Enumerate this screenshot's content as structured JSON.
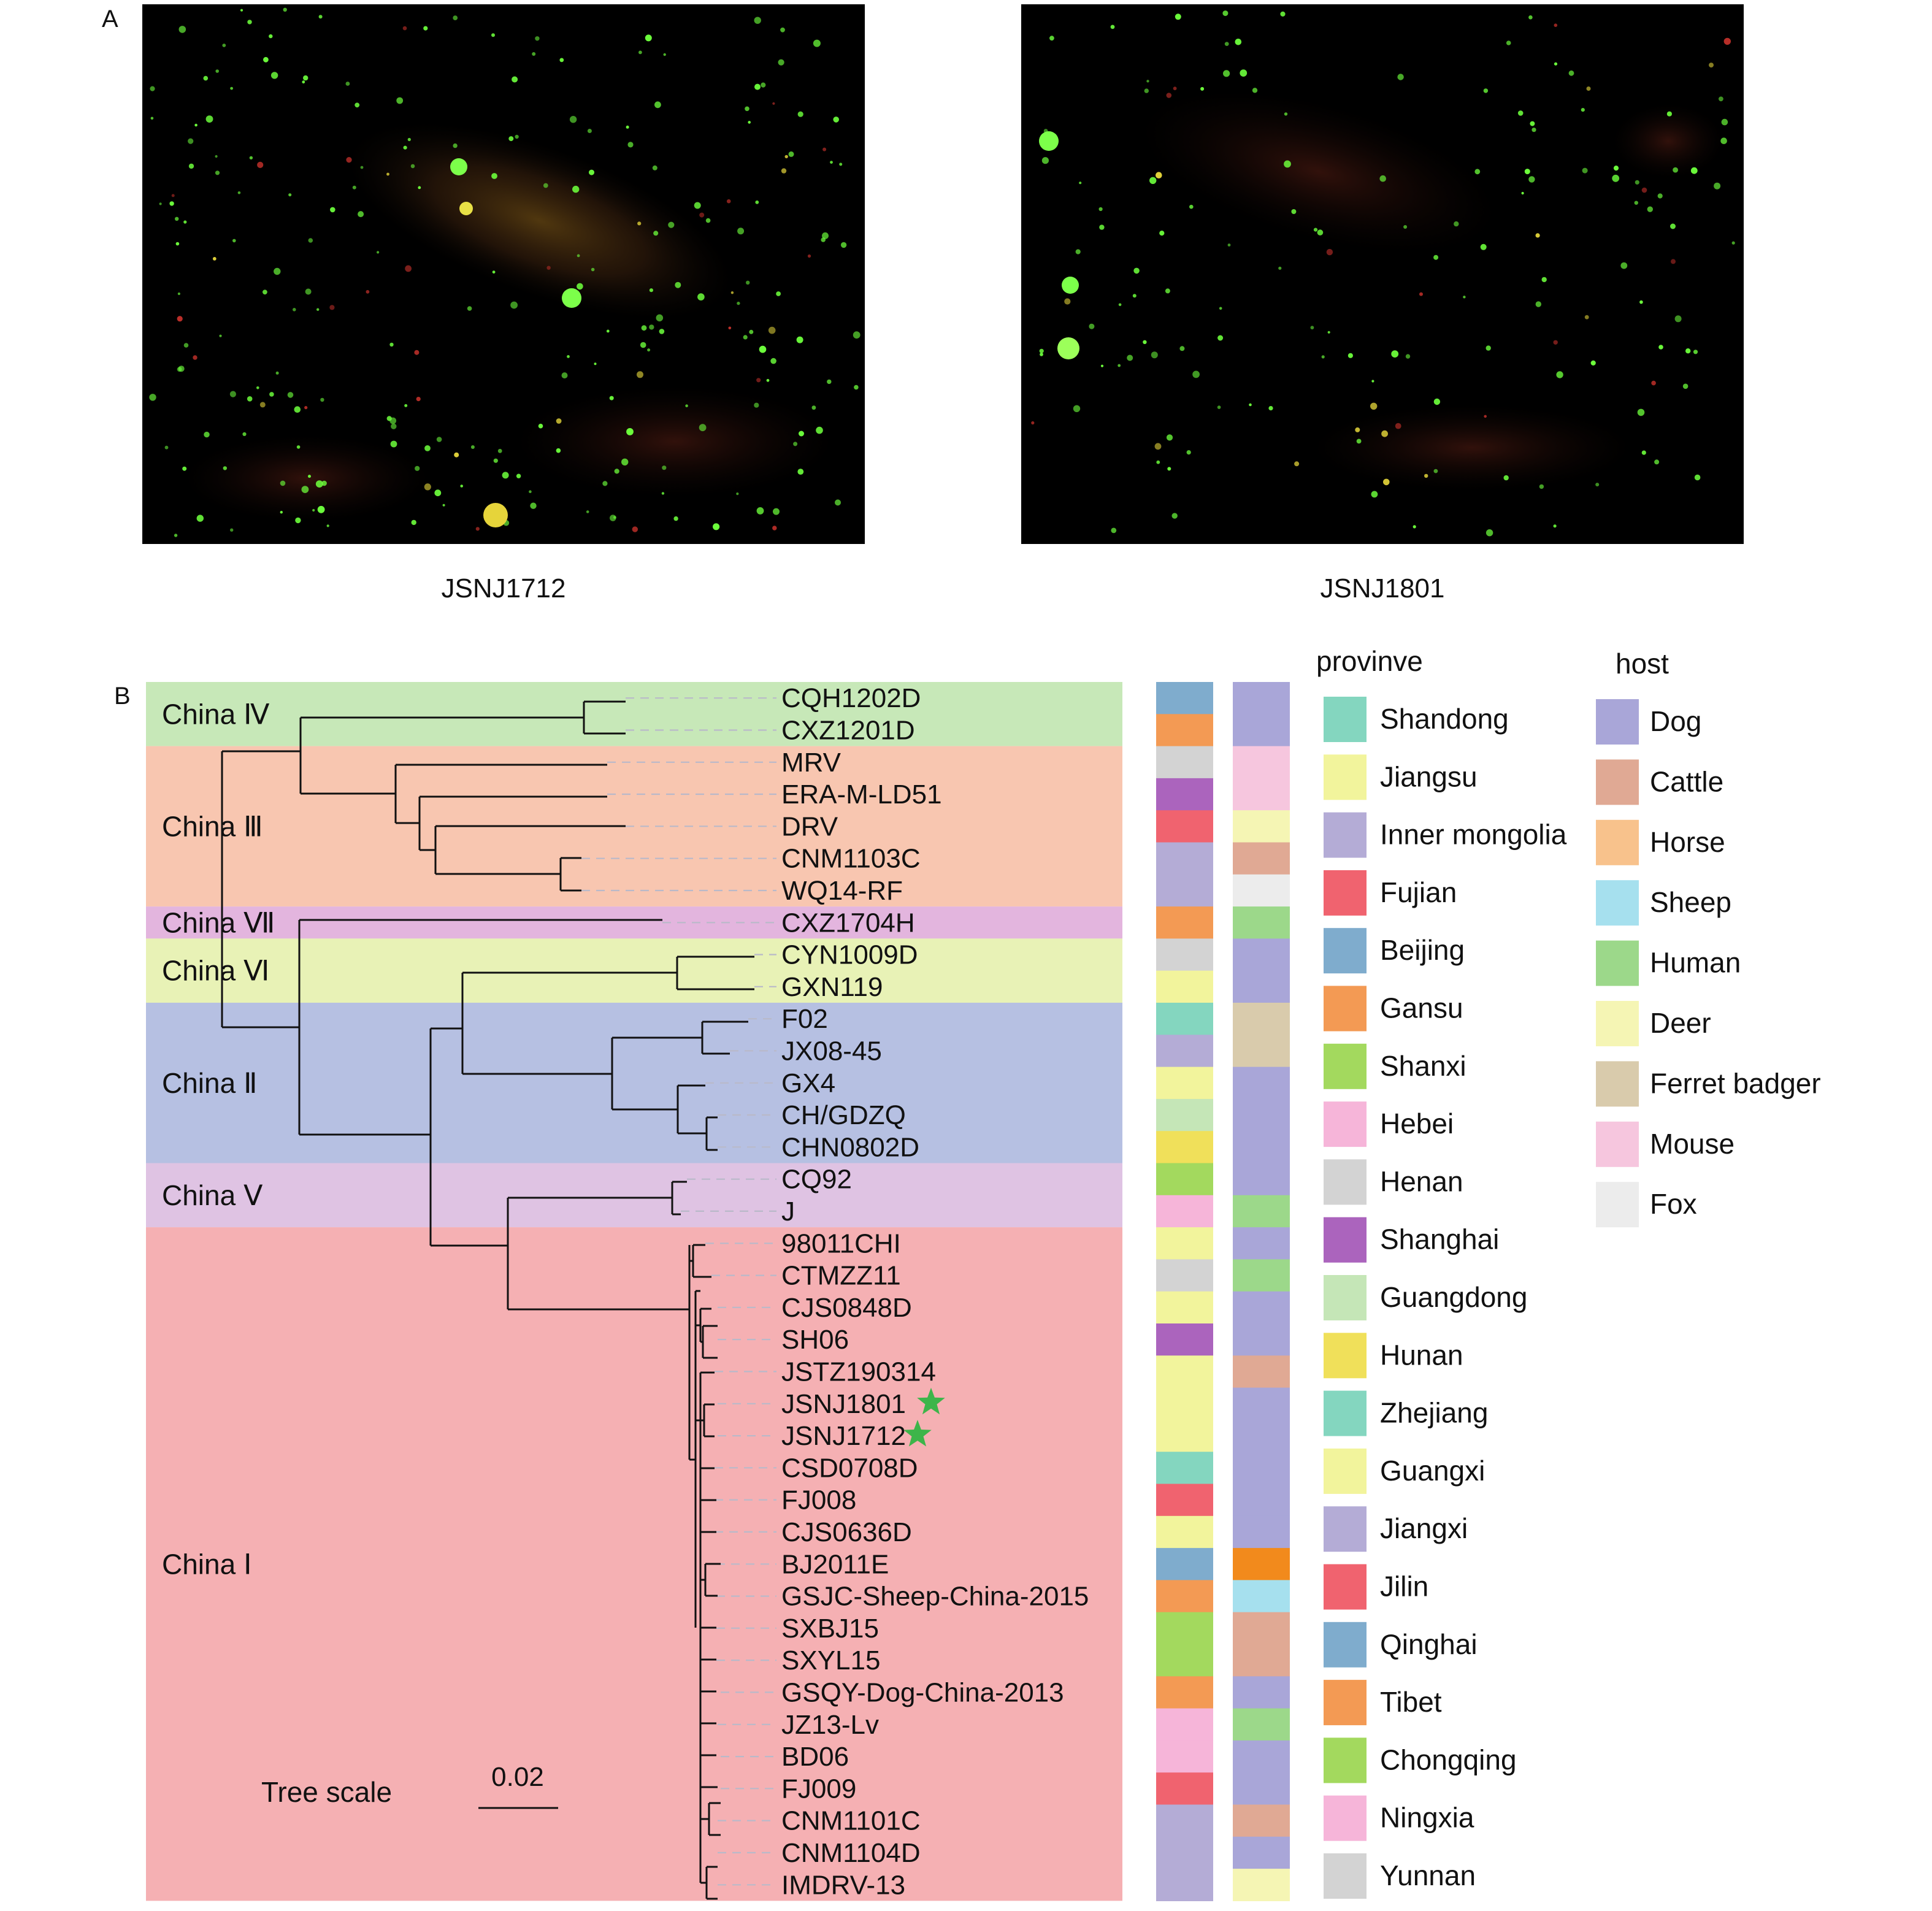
{
  "panel_a": {
    "label": "A",
    "images": [
      {
        "caption": "JSNJ1712"
      },
      {
        "caption": "JSNJ1801"
      }
    ]
  },
  "panel_b": {
    "label": "B",
    "clades": [
      {
        "name": "China Ⅳ",
        "color": "#c7e8b8",
        "rows": [
          0,
          1
        ]
      },
      {
        "name": "China Ⅲ",
        "color": "#f8c6b0",
        "rows": [
          2,
          6
        ]
      },
      {
        "name": "China Ⅶ",
        "color": "#e3b5de",
        "rows": [
          7,
          7
        ]
      },
      {
        "name": "China Ⅵ",
        "color": "#e8f2b6",
        "rows": [
          8,
          9
        ]
      },
      {
        "name": "China Ⅱ",
        "color": "#b6c0e2",
        "rows": [
          10,
          14
        ]
      },
      {
        "name": "China Ⅴ",
        "color": "#dfc3e3",
        "rows": [
          15,
          16
        ]
      },
      {
        "name": "China Ⅰ",
        "color": "#f5b0b3",
        "rows": [
          17,
          37
        ]
      }
    ],
    "leaves": [
      {
        "name": "CQH1202D",
        "province": "Beijing",
        "host": "Dog"
      },
      {
        "name": "CXZ1201D",
        "province": "Tibet",
        "host": "Dog"
      },
      {
        "name": "MRV",
        "province": "Henan",
        "host": "Mouse"
      },
      {
        "name": "ERA-M-LD51",
        "province": "Shanghai",
        "host": "Mouse"
      },
      {
        "name": "DRV",
        "province": "Jilin",
        "host": "Deer"
      },
      {
        "name": "CNM1103C",
        "province": "Inner mongolia",
        "host": "Cattle"
      },
      {
        "name": "WQ14-RF",
        "province": "Inner mongolia",
        "host": "Fox"
      },
      {
        "name": "CXZ1704H",
        "province": "Tibet",
        "host": "Human"
      },
      {
        "name": "CYN1009D",
        "province": "Henan",
        "host": "Dog"
      },
      {
        "name": "GXN119",
        "province": "Guangxi",
        "host": "Dog"
      },
      {
        "name": "F02",
        "province": "Zhejiang",
        "host": "Ferret badger"
      },
      {
        "name": "JX08-45",
        "province": "Jiangxi",
        "host": "Ferret badger"
      },
      {
        "name": "GX4",
        "province": "Guangxi",
        "host": "Dog"
      },
      {
        "name": "CH/GDZQ",
        "province": "Guangdong",
        "host": "Dog"
      },
      {
        "name": "CHN0802D",
        "province": "Hunan",
        "host": "Dog"
      },
      {
        "name": "CQ92",
        "province": "Chongqing",
        "host": "Dog"
      },
      {
        "name": "J",
        "province": "Hebei",
        "host": "Human"
      },
      {
        "name": "98011CHI",
        "province": "Jiangsu",
        "host": "Dog"
      },
      {
        "name": "CTMZZ11",
        "province": "Henan",
        "host": "Human"
      },
      {
        "name": "CJS0848D",
        "province": "Jiangsu",
        "host": "Dog"
      },
      {
        "name": "SH06",
        "province": "Shanghai",
        "host": "Dog"
      },
      {
        "name": "JSTZ190314",
        "province": "Jiangsu",
        "host": "Cattle"
      },
      {
        "name": "JSNJ1801",
        "province": "Jiangsu",
        "host": "Dog",
        "star": true
      },
      {
        "name": "JSNJ1712",
        "province": "Jiangsu",
        "host": "Dog",
        "star": true
      },
      {
        "name": "CSD0708D",
        "province": "Shandong",
        "host": "Dog"
      },
      {
        "name": "FJ008",
        "province": "Fujian",
        "host": "Dog"
      },
      {
        "name": "CJS0636D",
        "province": "Jiangsu",
        "host": "Dog"
      },
      {
        "name": "BJ2011E",
        "province": "Beijing",
        "host": "Horse"
      },
      {
        "name": "GSJC-Sheep-China-2015",
        "province": "Gansu",
        "host": "Sheep"
      },
      {
        "name": "SXBJ15",
        "province": "Shanxi",
        "host": "Cattle"
      },
      {
        "name": "SXYL15",
        "province": "Shanxi",
        "host": "Cattle"
      },
      {
        "name": "GSQY-Dog-China-2013",
        "province": "Gansu",
        "host": "Dog"
      },
      {
        "name": "JZ13-Lv",
        "province": "Ningxia",
        "host": "Human"
      },
      {
        "name": "BD06",
        "province": "Ningxia",
        "host": "Dog"
      },
      {
        "name": "FJ009",
        "province": "Fujian",
        "host": "Dog"
      },
      {
        "name": "CNM1101C",
        "province": "Inner mongolia",
        "host": "Cattle"
      },
      {
        "name": "CNM1104D",
        "province": "Inner mongolia",
        "host": "Dog"
      },
      {
        "name": "IMDRV-13",
        "province": "Inner mongolia",
        "host": "Deer"
      }
    ],
    "tree_scale": {
      "label": "Tree scale",
      "value": "0.02"
    },
    "province_legend": {
      "title": "provinve",
      "items": [
        {
          "name": "Shandong",
          "color": "#84d6bf"
        },
        {
          "name": "Jiangsu",
          "color": "#f2f49c"
        },
        {
          "name": "Inner mongolia",
          "color": "#b4acd6"
        },
        {
          "name": "Fujian",
          "color": "#f0636f"
        },
        {
          "name": "Beijing",
          "color": "#7faccd"
        },
        {
          "name": "Gansu",
          "color": "#f39a54"
        },
        {
          "name": "Shanxi",
          "color": "#a3d95e"
        },
        {
          "name": "Hebei",
          "color": "#f6b5d9"
        },
        {
          "name": "Henan",
          "color": "#d3d3d3"
        },
        {
          "name": "Shanghai",
          "color": "#ab64bd"
        },
        {
          "name": "Guangdong",
          "color": "#c5e6b7"
        },
        {
          "name": "Hunan",
          "color": "#f0e05a"
        },
        {
          "name": "Zhejiang",
          "color": "#84d6bf"
        },
        {
          "name": "Guangxi",
          "color": "#f2f49c"
        },
        {
          "name": "Jiangxi",
          "color": "#b4acd6"
        },
        {
          "name": "Jilin",
          "color": "#f0636f"
        },
        {
          "name": "Qinghai",
          "color": "#7faccd"
        },
        {
          "name": "Tibet",
          "color": "#f39a54"
        },
        {
          "name": "Chongqing",
          "color": "#a3d95e"
        },
        {
          "name": "Ningxia",
          "color": "#f6b5d9"
        },
        {
          "name": "Yunnan",
          "color": "#d3d3d3"
        }
      ]
    },
    "host_legend": {
      "title": "host",
      "items": [
        {
          "name": "Dog",
          "color": "#a9a6d8"
        },
        {
          "name": "Cattle",
          "color": "#e0a994"
        },
        {
          "name": "Horse",
          "color": "#f8c28c"
        },
        {
          "name": "Sheep",
          "color": "#a6e0ee"
        },
        {
          "name": "Human",
          "color": "#9cd88a"
        },
        {
          "name": "Deer",
          "color": "#f5f5b4"
        },
        {
          "name": "Ferret badger",
          "color": "#d9cbac"
        },
        {
          "name": "Mouse",
          "color": "#f6c6de"
        },
        {
          "name": "Fox",
          "color": "#ececec"
        }
      ]
    },
    "colors": {
      "branch": "#111111",
      "leader": "#b9b9c9",
      "star": "#3db54a",
      "horse_strip": "#f28a1c"
    }
  }
}
